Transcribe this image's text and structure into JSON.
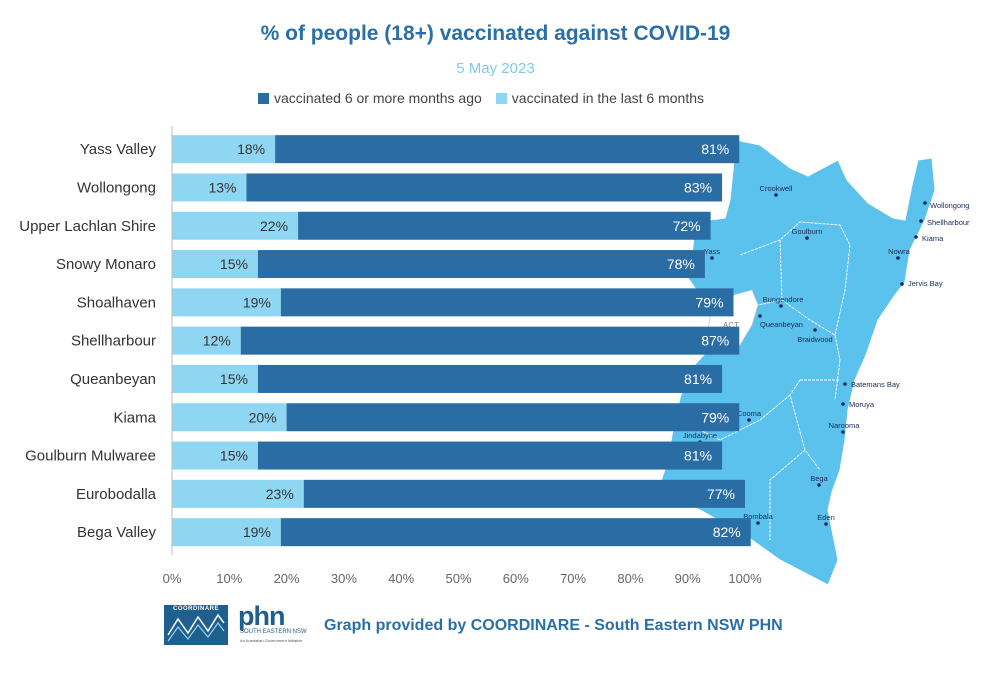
{
  "chart_data": {
    "type": "bar",
    "stacked": true,
    "orientation": "horizontal",
    "title": "% of people (18+) vaccinated against COVID-19",
    "subtitle": "5 May 2023",
    "categories": [
      "Yass Valley",
      "Wollongong",
      "Upper Lachlan Shire",
      "Snowy Monaro",
      "Shoalhaven",
      "Shellharbour",
      "Queanbeyan",
      "Kiama",
      "Goulburn Mulwaree",
      "Eurobodalla",
      "Bega Valley"
    ],
    "series": [
      {
        "name": "vaccinated in the last 6 months",
        "color": "#8fd6f3",
        "values": [
          18,
          13,
          22,
          15,
          19,
          12,
          15,
          20,
          15,
          23,
          19
        ]
      },
      {
        "name": "vaccinated 6 or more months ago",
        "color": "#2a6ca4",
        "values": [
          81,
          83,
          72,
          78,
          79,
          87,
          81,
          79,
          81,
          77,
          82
        ]
      }
    ],
    "legend_order": [
      "vaccinated 6 or more months ago",
      "vaccinated in the last 6 months"
    ],
    "xlim": [
      0,
      100
    ],
    "x_ticks": [
      "0%",
      "10%",
      "20%",
      "30%",
      "40%",
      "50%",
      "60%",
      "70%",
      "80%",
      "90%",
      "100%"
    ],
    "legend_position": "top"
  },
  "map": {
    "fill_color": "#5bc2ee",
    "labels": [
      "Crookwell",
      "Wollongong",
      "Shellharbour",
      "Kiama",
      "Yass",
      "Goulburn",
      "Nowra",
      "Jervis Bay",
      "ACT",
      "Bungendore",
      "Queanbeyan",
      "Braidwood",
      "Batemans Bay",
      "Moruya",
      "Cooma",
      "Narooma",
      "Jindabyne",
      "Bega",
      "Eden",
      "Bombala"
    ]
  },
  "footer": {
    "text": "Graph provided by COORDINARE - South Eastern NSW PHN",
    "logo1_text": "COORDINARE",
    "logo2_big": "phn",
    "logo2_small": "SOUTH EASTERN NSW",
    "logo2_tiny": "An Australian Government Initiative"
  }
}
